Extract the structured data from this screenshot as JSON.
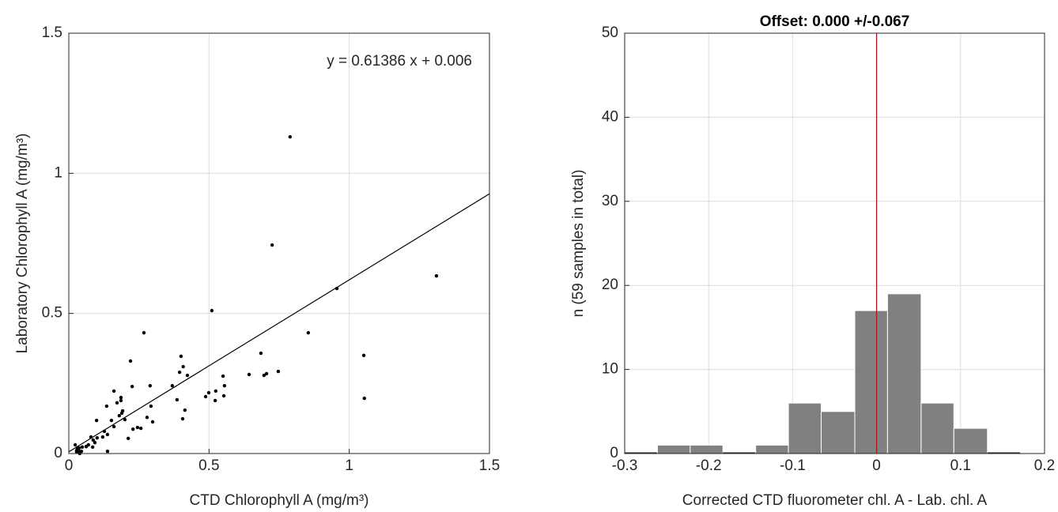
{
  "chart_data": [
    {
      "type": "scatter",
      "x_label": "CTD Chlorophyll A (mg/m³)",
      "y_label": "Laboratory Chlorophyll A (mg/m³)",
      "annotation": "y = 0.61386 x + 0.006",
      "fit_slope": 0.61386,
      "fit_intercept": 0.006,
      "fit_color": "#000000",
      "color": "#000000",
      "xlim": [
        0,
        1.5
      ],
      "ylim": [
        0,
        1.5
      ],
      "xticks": [
        0,
        0.5,
        1,
        1.5
      ],
      "yticks": [
        0,
        0.5,
        1,
        1.5
      ],
      "grid": true,
      "x": [
        0.789,
        0.725,
        1.311,
        0.956,
        0.51,
        0.268,
        0.854,
        1.052,
        1.054,
        0.685,
        0.747,
        0.696,
        0.705,
        0.643,
        0.55,
        0.555,
        0.553,
        0.524,
        0.488,
        0.499,
        0.522,
        0.22,
        0.4,
        0.408,
        0.395,
        0.423,
        0.369,
        0.386,
        0.414,
        0.406,
        0.29,
        0.293,
        0.279,
        0.299,
        0.257,
        0.245,
        0.226,
        0.229,
        0.212,
        0.2,
        0.192,
        0.189,
        0.18,
        0.186,
        0.186,
        0.161,
        0.172,
        0.161,
        0.152,
        0.135,
        0.138,
        0.138,
        0.127,
        0.121,
        0.099,
        0.101,
        0.093,
        0.087,
        0.079,
        0.085,
        0.07,
        0.062,
        0.048,
        0.037,
        0.031,
        0.028,
        0.037,
        0.045,
        0.023,
        0.028,
        0.039
      ],
      "y": [
        1.13,
        0.744,
        0.634,
        0.589,
        0.51,
        0.431,
        0.431,
        0.35,
        0.197,
        0.358,
        0.293,
        0.279,
        0.285,
        0.282,
        0.276,
        0.242,
        0.206,
        0.223,
        0.203,
        0.217,
        0.189,
        0.33,
        0.347,
        0.31,
        0.29,
        0.279,
        0.242,
        0.192,
        0.155,
        0.124,
        0.242,
        0.169,
        0.129,
        0.113,
        0.09,
        0.093,
        0.239,
        0.087,
        0.054,
        0.121,
        0.152,
        0.144,
        0.135,
        0.2,
        0.189,
        0.223,
        0.181,
        0.096,
        0.118,
        0.169,
        0.068,
        0.008,
        0.079,
        0.059,
        0.118,
        0.056,
        0.039,
        0.048,
        0.059,
        0.023,
        0.031,
        0.025,
        0.023,
        0.02,
        0.02,
        0.011,
        0.008,
        0.008,
        0.031,
        0.006,
        0.0
      ]
    },
    {
      "type": "histogram",
      "title": "Offset: 0.000 +/-0.067",
      "x_label": "Corrected CTD fluorometer chl. A - Lab. chl. A",
      "y_label": "n (59 samples in total)",
      "color": "#808080",
      "edge_color": "#ffffff",
      "vline": 0,
      "vline_color": "#e00000",
      "xlim": [
        -0.3,
        0.2
      ],
      "ylim": [
        0,
        50
      ],
      "xticks": [
        -0.3,
        -0.2,
        -0.1,
        0,
        0.1,
        0.2
      ],
      "yticks": [
        0,
        10,
        20,
        30,
        40,
        50
      ],
      "grid": true,
      "bins": [
        -0.3,
        -0.261,
        -0.222,
        -0.183,
        -0.144,
        -0.105,
        -0.066,
        -0.026,
        0.013,
        0.053,
        0.092,
        0.132,
        0.171
      ],
      "counts": [
        0,
        1,
        1,
        0,
        1,
        6,
        5,
        17,
        19,
        6,
        3,
        0
      ]
    }
  ]
}
